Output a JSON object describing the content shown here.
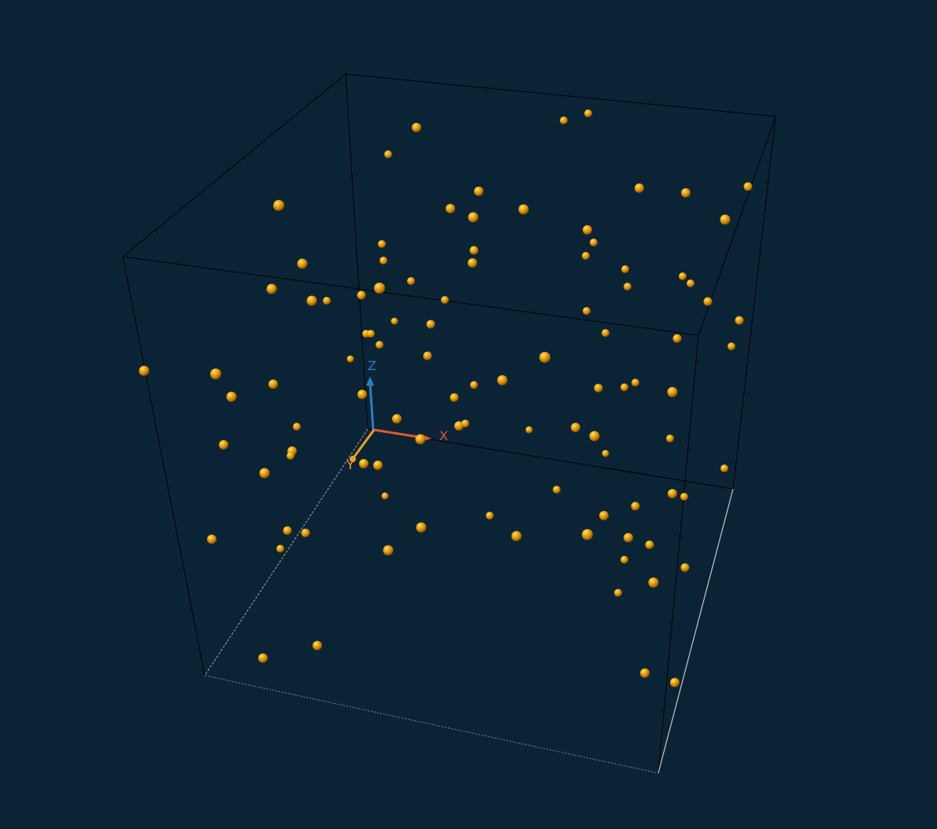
{
  "scene": {
    "background_color": "#0b2435",
    "box_edge_color": "#000000",
    "box_edge_lit_color": "#c8c8c8",
    "particle_color": "#f0a000"
  },
  "axes": {
    "x": {
      "label": "X",
      "color": "#e05a2a"
    },
    "y": {
      "label": "Y",
      "color": "#f0a020"
    },
    "z": {
      "label": "Z",
      "color": "#2a7fc0"
    }
  },
  "particle_count": 113
}
